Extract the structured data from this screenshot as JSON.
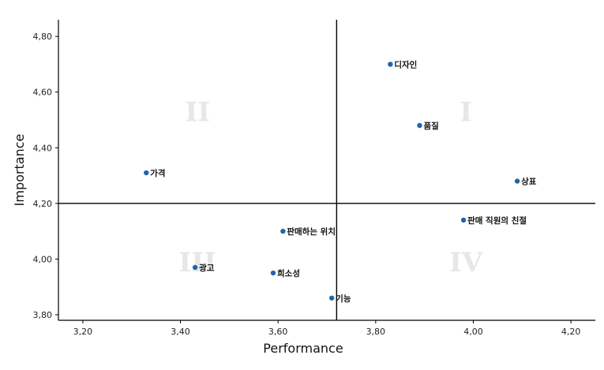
{
  "chart_data": {
    "type": "scatter",
    "xlabel": "Performance",
    "ylabel": "Importance",
    "xlim": [
      3.15,
      4.25
    ],
    "ylim": [
      3.78,
      4.86
    ],
    "xticks": [
      "3,20",
      "3,40",
      "3,60",
      "3,80",
      "4,00",
      "4,20"
    ],
    "yticks": [
      "3,80",
      "4,00",
      "4,20",
      "4,40",
      "4,60",
      "4,80"
    ],
    "reference_lines": {
      "x": 3.72,
      "y": 4.2
    },
    "quadrant_labels": [
      "I",
      "II",
      "III",
      "IV"
    ],
    "marker_color": "#1f66b0",
    "grid": false,
    "points": [
      {
        "label": "디자인",
        "x": 3.83,
        "y": 4.7
      },
      {
        "label": "품질",
        "x": 3.89,
        "y": 4.48
      },
      {
        "label": "가격",
        "x": 3.33,
        "y": 4.31
      },
      {
        "label": "상표",
        "x": 4.09,
        "y": 4.28
      },
      {
        "label": "판매 직원의 친절",
        "x": 3.98,
        "y": 4.14
      },
      {
        "label": "판매하는 위치",
        "x": 3.61,
        "y": 4.1
      },
      {
        "label": "광고",
        "x": 3.43,
        "y": 3.97
      },
      {
        "label": "희소성",
        "x": 3.59,
        "y": 3.95
      },
      {
        "label": "기능",
        "x": 3.71,
        "y": 3.86
      }
    ]
  }
}
